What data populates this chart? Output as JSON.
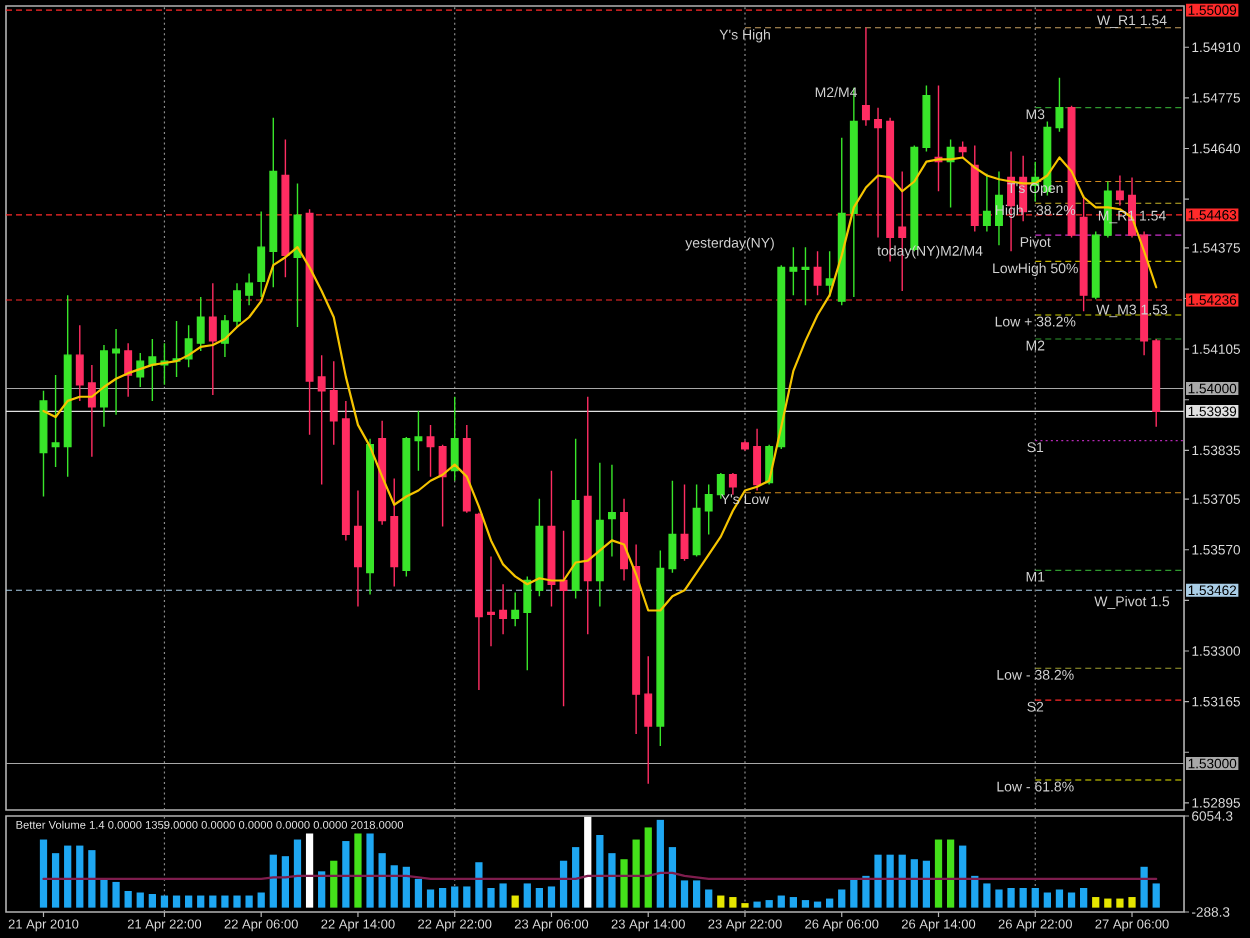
{
  "chart_data": [
    {
      "type": "candlestick",
      "categories": [
        "21 Apr 2010",
        null,
        null,
        null,
        null,
        null,
        null,
        null,
        null,
        null,
        "21 Apr 22:00",
        null,
        null,
        null,
        null,
        null,
        null,
        null,
        "22 Apr 06:00",
        null,
        null,
        null,
        null,
        null,
        null,
        null,
        "22 Apr 14:00",
        null,
        null,
        null,
        null,
        null,
        null,
        null,
        "22 Apr 22:00",
        null,
        null,
        null,
        null,
        null,
        null,
        null,
        "23 Apr 06:00",
        null,
        null,
        null,
        null,
        null,
        null,
        null,
        "23 Apr 14:00",
        null,
        null,
        null,
        null,
        null,
        null,
        null,
        "23 Apr 22:00",
        null,
        null,
        null,
        null,
        null,
        null,
        null,
        "26 Apr 06:00",
        null,
        null,
        null,
        null,
        null,
        null,
        null,
        "26 Apr 14:00",
        null,
        null,
        null,
        null,
        null,
        null,
        null,
        "26 Apr 22:00",
        null,
        null,
        null,
        null,
        null,
        null,
        null,
        "27 Apr 06:00",
        null,
        null
      ],
      "ohlc": [
        [
          1.53829,
          1.53994,
          1.53712,
          1.53967
        ],
        [
          1.53845,
          1.54036,
          1.53791,
          1.53855
        ],
        [
          1.53845,
          1.54249,
          1.53765,
          1.54089
        ],
        [
          1.54089,
          1.54169,
          1.53967,
          1.5401
        ],
        [
          1.54015,
          1.54063,
          1.53818,
          1.53951
        ],
        [
          1.53951,
          1.54116,
          1.53898,
          1.541
        ],
        [
          1.54095,
          1.54159,
          1.5393,
          1.54105
        ],
        [
          1.541,
          1.54121,
          1.53978,
          1.54036
        ],
        [
          1.54031,
          1.54095,
          1.54004,
          1.54073
        ],
        [
          1.54063,
          1.54132,
          1.53967,
          1.54084
        ],
        [
          1.54063,
          1.54121,
          1.5401,
          1.54073
        ],
        [
          1.54073,
          1.5418,
          1.54031,
          1.54079
        ],
        [
          1.54079,
          1.54169,
          1.54057,
          1.54132
        ],
        [
          1.54121,
          1.54244,
          1.541,
          1.5419
        ],
        [
          1.5419,
          1.54281,
          1.53983,
          1.54127
        ],
        [
          1.54121,
          1.54196,
          1.54084,
          1.5418
        ],
        [
          1.5418,
          1.54281,
          1.54164,
          1.5426
        ],
        [
          1.54249,
          1.54307,
          1.54222,
          1.54281
        ],
        [
          1.54286,
          1.54472,
          1.54244,
          1.54377
        ],
        [
          1.54366,
          1.54722,
          1.5427,
          1.54579
        ],
        [
          1.54568,
          1.54664,
          1.54297,
          1.54355
        ],
        [
          1.5435,
          1.54547,
          1.54164,
          1.54462
        ],
        [
          1.54467,
          1.54478,
          1.53877,
          1.5402
        ],
        [
          1.54031,
          1.54089,
          1.53744,
          1.53994
        ],
        [
          1.53994,
          1.54073,
          1.5385,
          1.53914
        ],
        [
          1.53919,
          1.53967,
          1.53595,
          1.53611
        ],
        [
          1.53632,
          1.53728,
          1.53419,
          1.53525
        ],
        [
          1.53509,
          1.53866,
          1.53451,
          1.5385
        ],
        [
          1.53866,
          1.53914,
          1.53637,
          1.53648
        ],
        [
          1.53658,
          1.5376,
          1.53472,
          1.53525
        ],
        [
          1.53515,
          1.53871,
          1.53499,
          1.53866
        ],
        [
          1.53861,
          1.5394,
          1.53781,
          1.53871
        ],
        [
          1.53871,
          1.53903,
          1.53765,
          1.53845
        ],
        [
          1.53845,
          1.5385,
          1.53632,
          1.53765
        ],
        [
          1.53781,
          1.53978,
          1.53754,
          1.53866
        ],
        [
          1.53866,
          1.53903,
          1.53669,
          1.53674
        ],
        [
          1.53664,
          1.53669,
          1.53196,
          1.53392
        ],
        [
          1.53403,
          1.53552,
          1.53313,
          1.53398
        ],
        [
          1.53408,
          1.53478,
          1.53345,
          1.53387
        ],
        [
          1.53387,
          1.53456,
          1.53366,
          1.53408
        ],
        [
          1.53403,
          1.53499,
          1.53249,
          1.53488
        ],
        [
          1.53462,
          1.53706,
          1.53446,
          1.53632
        ],
        [
          1.53632,
          1.53781,
          1.53419,
          1.53478
        ],
        [
          1.53488,
          1.53621,
          1.53153,
          1.53462
        ],
        [
          1.53462,
          1.53866,
          1.5344,
          1.53701
        ],
        [
          1.53712,
          1.53978,
          1.53345,
          1.53488
        ],
        [
          1.53488,
          1.53802,
          1.53419,
          1.53648
        ],
        [
          1.53653,
          1.53797,
          1.53552,
          1.53669
        ],
        [
          1.53669,
          1.53706,
          1.53488,
          1.5352
        ],
        [
          1.53525,
          1.53584,
          1.53079,
          1.53185
        ],
        [
          1.53185,
          1.53286,
          1.52946,
          1.531
        ],
        [
          1.531,
          1.53568,
          1.53047,
          1.5352
        ],
        [
          1.5352,
          1.53754,
          1.53509,
          1.53611
        ],
        [
          1.53611,
          1.53744,
          1.53541,
          1.53547
        ],
        [
          1.53557,
          1.53744,
          1.53552,
          1.5368
        ],
        [
          1.53674,
          1.53744,
          1.53611,
          1.53717
        ],
        [
          1.53717,
          1.53775,
          1.53706,
          1.5377
        ],
        [
          1.5377,
          1.53775,
          1.53717,
          1.53738
        ],
        [
          1.53855,
          1.53861,
          1.53834,
          1.53839
        ],
        [
          1.53845,
          1.53893,
          1.53728,
          1.53744
        ],
        [
          1.53749,
          1.5385,
          1.53744,
          1.53845
        ],
        [
          1.53845,
          1.54329,
          1.53839,
          1.54323
        ],
        [
          1.54313,
          1.54377,
          1.54249,
          1.54323
        ],
        [
          1.54318,
          1.54377,
          1.54222,
          1.54323
        ],
        [
          1.54323,
          1.54366,
          1.54249,
          1.54276
        ],
        [
          1.54276,
          1.54366,
          1.54244,
          1.54292
        ],
        [
          1.54233,
          1.54669,
          1.54222,
          1.54467
        ],
        [
          1.54467,
          1.54802,
          1.54244,
          1.54712
        ],
        [
          1.54754,
          1.54962,
          1.54701,
          1.54717
        ],
        [
          1.54717,
          1.54749,
          1.54403,
          1.54696
        ],
        [
          1.54712,
          1.54722,
          1.54339,
          1.54403
        ],
        [
          1.5443,
          1.54579,
          1.5426,
          1.54403
        ],
        [
          1.54371,
          1.54648,
          1.54366,
          1.54643
        ],
        [
          1.54643,
          1.54808,
          1.54632,
          1.54781
        ],
        [
          1.54616,
          1.54808,
          1.54526,
          1.54605
        ],
        [
          1.54605,
          1.54664,
          1.54483,
          1.54643
        ],
        [
          1.54643,
          1.54659,
          1.54616,
          1.54632
        ],
        [
          1.54595,
          1.54648,
          1.54419,
          1.54435
        ],
        [
          1.54435,
          1.54573,
          1.54419,
          1.54472
        ],
        [
          1.54435,
          1.54579,
          1.54382,
          1.54515
        ],
        [
          1.54563,
          1.54632,
          1.54366,
          1.54488
        ],
        [
          1.54563,
          1.54621,
          1.54446,
          1.54472
        ],
        [
          1.54542,
          1.54605,
          1.54499,
          1.54563
        ],
        [
          1.54526,
          1.54712,
          1.54515,
          1.54696
        ],
        [
          1.54696,
          1.54829,
          1.54685,
          1.54749
        ],
        [
          1.54749,
          1.54754,
          1.54403,
          1.54409
        ],
        [
          1.54456,
          1.54515,
          1.54206,
          1.54249
        ],
        [
          1.54244,
          1.54419,
          1.54238,
          1.54409
        ],
        [
          1.54409,
          1.54552,
          1.54403,
          1.54526
        ],
        [
          1.54526,
          1.54568,
          1.54488,
          1.54504
        ],
        [
          1.54515,
          1.54563,
          1.54403,
          1.54409
        ],
        [
          1.54409,
          1.54419,
          1.54089,
          1.54127
        ],
        [
          1.54127,
          1.54132,
          1.53898,
          1.53939
        ]
      ],
      "colors": [
        "#39e52a",
        "#39e52a",
        "#39e52a",
        "#ff2d62",
        "#ff2d62",
        "#39e52a",
        "#39e52a",
        "#ff2d62",
        "#39e52a",
        "#39e52a",
        "#39e52a",
        "#39e52a",
        "#39e52a",
        "#39e52a",
        "#ff2d62",
        "#39e52a",
        "#39e52a",
        "#39e52a",
        "#39e52a",
        "#39e52a",
        "#ff2d62",
        "#39e52a",
        "#ff2d62",
        "#ff2d62",
        "#ff2d62",
        "#ff2d62",
        "#ff2d62",
        "#39e52a",
        "#ff2d62",
        "#ff2d62",
        "#39e52a",
        "#39e52a",
        "#ff2d62",
        "#ff2d62",
        "#39e52a",
        "#ff2d62",
        "#ff2d62",
        "#ff2d62",
        "#ff2d62",
        "#39e52a",
        "#39e52a",
        "#39e52a",
        "#ff2d62",
        "#ff2d62",
        "#39e52a",
        "#ff2d62",
        "#39e52a",
        "#39e52a",
        "#ff2d62",
        "#ff2d62",
        "#ff2d62",
        "#39e52a",
        "#39e52a",
        "#ff2d62",
        "#39e52a",
        "#39e52a",
        "#39e52a",
        "#ff2d62",
        "#ff2d62",
        "#ff2d62",
        "#39e52a",
        "#39e52a",
        "#39e52a",
        "#39e52a",
        "#ff2d62",
        "#39e52a",
        "#39e52a",
        "#39e52a",
        "#ff2d62",
        "#ff2d62",
        "#ff2d62",
        "#ff2d62",
        "#39e52a",
        "#39e52a",
        "#ff2d62",
        "#39e52a",
        "#ff2d62",
        "#ff2d62",
        "#39e52a",
        "#39e52a",
        "#ff2d62",
        "#ff2d62",
        "#39e52a",
        "#39e52a",
        "#39e52a",
        "#ff2d62",
        "#ff2d62",
        "#39e52a",
        "#39e52a",
        "#ff2d62",
        "#ff2d62",
        "#ff2d62",
        "#ff2d62"
      ],
      "series": [
        {
          "type": "line",
          "color": "#f5c400",
          "values": [
            1.5394,
            1.53924,
            1.53967,
            1.53978,
            1.53978,
            1.54004,
            1.54026,
            1.54041,
            1.54052,
            1.54063,
            1.54068,
            1.54073,
            1.54089,
            1.54111,
            1.54116,
            1.54132,
            1.54164,
            1.5419,
            1.54233,
            1.54329,
            1.5435,
            1.54377,
            1.54323,
            1.5426,
            1.5419,
            1.54031,
            1.53903,
            1.53845,
            1.53765,
            1.5369,
            1.53712,
            1.53728,
            1.53754,
            1.5377,
            1.53797,
            1.53765,
            1.53685,
            1.53595,
            1.53531,
            1.53499,
            1.53478,
            1.53494,
            1.53488,
            1.53488,
            1.53536,
            1.53541,
            1.53568,
            1.53595,
            1.53584,
            1.53504,
            1.53408,
            1.53408,
            1.53446,
            1.53462,
            1.53509,
            1.53557,
            1.53605,
            1.53674,
            1.53728,
            1.53738,
            1.53754,
            1.53898,
            1.54047,
            1.54127,
            1.54196,
            1.54249,
            1.54355,
            1.54483,
            1.54536,
            1.54568,
            1.54563,
            1.54526,
            1.54552,
            1.54605,
            1.54611,
            1.54611,
            1.54616,
            1.54589,
            1.54568,
            1.54558,
            1.54552,
            1.54547,
            1.54547,
            1.54568,
            1.54616,
            1.54579,
            1.5451,
            1.54483,
            1.54483,
            1.54478,
            1.54456,
            1.54366,
            1.5427
          ]
        }
      ],
      "ylim": [
        1.52876,
        1.5502
      ],
      "yticks": [
        {
          "value": 1.5491,
          "label": "1.54910"
        },
        1.54775,
        {
          "value": 1.5464,
          "label": "1.54640"
        },
        {
          "value": 1.54505,
          "label": null
        },
        1.54375,
        {
          "value": 1.5424,
          "label": null
        },
        1.54105,
        {
          "value": 1.5397,
          "label": null
        },
        1.53835,
        1.53705,
        {
          "value": 1.5357,
          "label": "1.53570"
        },
        {
          "value": 1.53435,
          "label": null
        },
        {
          "value": 1.533,
          "label": "1.53300"
        },
        1.53165,
        {
          "value": 1.5303,
          "label": null
        },
        1.52895
      ],
      "tick_labels": "y",
      "ref_lines": [
        {
          "axis": "x",
          "value": "21 Apr 22:00",
          "color": "#8c8c8c",
          "line_style": "dotted"
        },
        {
          "axis": "x",
          "value": "22 Apr 22:00",
          "color": "#8c8c8c",
          "line_style": "dotted"
        },
        {
          "axis": "x",
          "value": "23 Apr 22:00",
          "color": "#8c8c8c",
          "line_style": "dotted"
        },
        {
          "axis": "x",
          "value": "26 Apr 22:00",
          "color": "#8c8c8c",
          "line_style": "dotted"
        },
        {
          "axis": "y",
          "value": 1.55009,
          "label": "1.55009",
          "color": "#ff2a2a",
          "line_style": "dashed"
        },
        {
          "axis": "y",
          "value": 1.54463,
          "label": "1.54463",
          "color": "#ff2a2a",
          "line_style": "dashed"
        },
        {
          "axis": "y",
          "value": 1.54236,
          "label": "1.54236",
          "color": "#ff2a2a",
          "line_style": "dashed"
        },
        {
          "axis": "y",
          "value": 1.54,
          "label": "1.54000",
          "color": "#a8a8a8",
          "line_style": "solid"
        },
        {
          "axis": "y",
          "value": 1.53939,
          "label": "1.53939",
          "color": "#e0e0e0",
          "line_style": "solid"
        },
        {
          "axis": "y",
          "value": 1.53462,
          "label": "1.53462",
          "color": "#a9cde6",
          "line_style": "dashed"
        },
        {
          "axis": "y",
          "value": 1.53,
          "label": "1.53000",
          "color": "#a8a8a8",
          "line_style": "solid"
        },
        {
          "axis": "y",
          "value": 1.54962,
          "color": "#c8a060",
          "line_style": "dashed"
        },
        {
          "axis": "y",
          "value": 1.54749,
          "color": "#2f9a2f",
          "line_style": "dashed"
        },
        {
          "axis": "y",
          "value": 1.54552,
          "color": "#d08a1e",
          "line_style": "dashed"
        },
        {
          "axis": "y",
          "value": 1.54494,
          "color": "#c8b428",
          "line_style": "dashed"
        },
        {
          "axis": "y",
          "value": 1.54409,
          "color": "#c832c8",
          "line_style": "dashed"
        },
        {
          "axis": "y",
          "value": 1.54339,
          "color": "#c8b400",
          "line_style": "dashed"
        },
        {
          "axis": "y",
          "value": 1.54196,
          "color": "#d2d200",
          "line_style": "dashed"
        },
        {
          "axis": "y",
          "value": 1.54132,
          "color": "#2f9a2f",
          "line_style": "dashed"
        },
        {
          "axis": "y",
          "value": 1.53861,
          "color": "#b428b4",
          "line_style": "dotted"
        },
        {
          "axis": "y",
          "value": 1.53722,
          "color": "#d08a1e",
          "line_style": "dashed"
        },
        {
          "axis": "y",
          "value": 1.53515,
          "color": "#2f9a2f",
          "line_style": "dashed"
        },
        {
          "axis": "y",
          "value": 1.53254,
          "color": "#a0a030",
          "line_style": "dashed"
        },
        {
          "axis": "y",
          "value": 1.53169,
          "color": "#ff2a2a",
          "line_style": "dashed"
        },
        {
          "axis": "y",
          "value": 1.52956,
          "color": "#e6e600",
          "line_style": "dashed"
        }
      ],
      "annotations": [
        {
          "text": "Y's High",
          "x": "23 Apr 22:00",
          "y": 1.54962
        },
        "M2/M4",
        "yesterday(NY)",
        {
          "text": "M3",
          "x": "26 Apr 22:00",
          "y": 1.54749
        },
        {
          "text": "T's Open",
          "x": "26 Apr 22:00",
          "y": 1.54552
        },
        {
          "text": "High - 38.2%",
          "x": "26 Apr 22:00",
          "y": 1.54494
        },
        {
          "text": "Pivot",
          "x": "26 Apr 22:00",
          "y": 1.54409
        },
        "today(NY)M2/M4",
        {
          "text": "LowHigh 50%",
          "x": "26 Apr 22:00",
          "y": 1.54339
        },
        {
          "text": "Low + 38.2%",
          "x": "26 Apr 22:00",
          "y": 1.54196
        },
        {
          "text": "M2",
          "x": "26 Apr 22:00",
          "y": 1.54132
        },
        {
          "text": "S1",
          "x": "26 Apr 22:00",
          "y": 1.53861
        },
        {
          "text": "Y's Low",
          "x": "23 Apr 22:00",
          "y": 1.53722
        },
        {
          "text": "M1",
          "x": "26 Apr 22:00",
          "y": 1.53515
        },
        {
          "text": "Low - 38.2%",
          "x": "26 Apr 22:00",
          "y": 1.53254
        },
        {
          "text": "S2",
          "x": "26 Apr 22:00",
          "y": 1.53169
        },
        {
          "text": "Low - 61.8%",
          "x": "26 Apr 22:00",
          "y": 1.52956
        },
        {
          "text": "W_R1 1.54",
          "x": "27 Apr 06:00",
          "y": 1.54999
        },
        {
          "text": "M_R1 1.54",
          "x": "27 Apr 06:00",
          "y": 1.54478
        },
        {
          "text": "W_M3 1.53",
          "x": "27 Apr 06:00",
          "y": 1.54228
        },
        {
          "text": "W_Pivot 1.5",
          "x": "27 Apr 06:00",
          "y": 1.53451
        }
      ]
    },
    {
      "type": "bar",
      "title": "Better Volume 1.4 0.0000 1359.0000 0.0000 0.0000 0.0000 0.0000 2018.0000",
      "categories": [
        "21 Apr 2010",
        null,
        null,
        null,
        null,
        null,
        null,
        null,
        null,
        null,
        "21 Apr 22:00",
        null,
        null,
        null,
        null,
        null,
        null,
        null,
        "22 Apr 06:00",
        null,
        null,
        null,
        null,
        null,
        null,
        null,
        "22 Apr 14:00",
        null,
        null,
        null,
        null,
        null,
        null,
        null,
        "22 Apr 22:00",
        null,
        null,
        null,
        null,
        null,
        null,
        null,
        "23 Apr 06:00",
        null,
        null,
        null,
        null,
        null,
        null,
        null,
        "23 Apr 14:00",
        null,
        null,
        null,
        null,
        null,
        null,
        null,
        "23 Apr 22:00",
        null,
        null,
        null,
        null,
        null,
        null,
        null,
        "26 Apr 06:00",
        null,
        null,
        null,
        null,
        null,
        null,
        null,
        "26 Apr 14:00",
        null,
        null,
        null,
        null,
        null,
        null,
        null,
        "26 Apr 22:00",
        null,
        null,
        null,
        null,
        null,
        null,
        null,
        "27 Apr 06:00",
        null,
        null
      ],
      "series": [
        {
          "values": [
            4500,
            3600,
            4100,
            4100,
            3800,
            1900,
            1700,
            1100,
            1000,
            900,
            800,
            800,
            800,
            800,
            800,
            800,
            800,
            800,
            1000,
            3500,
            3400,
            4500,
            4900,
            2400,
            3100,
            4400,
            4900,
            4900,
            3600,
            2800,
            2700,
            1900,
            1200,
            1300,
            1400,
            1400,
            3000,
            1300,
            1600,
            800,
            1600,
            1300,
            1400,
            3100,
            4000,
            6000,
            4800,
            3600,
            3200,
            4500,
            5300,
            5800,
            4000,
            1800,
            1800,
            1200,
            800,
            700,
            300,
            400,
            500,
            800,
            700,
            500,
            400,
            600,
            1200,
            1900,
            2100,
            3500,
            3500,
            3500,
            3200,
            3100,
            4500,
            4500,
            4100,
            2100,
            1600,
            1200,
            1300,
            1300,
            1300,
            1000,
            1200,
            1000,
            1300,
            700,
            600,
            600,
            700,
            2700,
            1600
          ],
          "colors": [
            "#1ea7f2",
            "#1ea7f2",
            "#1ea7f2",
            "#1ea7f2",
            "#1ea7f2",
            "#1ea7f2",
            "#1ea7f2",
            "#1ea7f2",
            "#1ea7f2",
            "#1ea7f2",
            "#1ea7f2",
            "#1ea7f2",
            "#1ea7f2",
            "#1ea7f2",
            "#1ea7f2",
            "#1ea7f2",
            "#1ea7f2",
            "#1ea7f2",
            "#1ea7f2",
            "#1ea7f2",
            "#1ea7f2",
            "#1ea7f2",
            "#ffffff",
            "#1ea7f2",
            "#44e01a",
            "#1ea7f2",
            "#44e01a",
            "#1ea7f2",
            "#1ea7f2",
            "#1ea7f2",
            "#1ea7f2",
            "#1ea7f2",
            "#1ea7f2",
            "#1ea7f2",
            "#1ea7f2",
            "#1ea7f2",
            "#1ea7f2",
            "#1ea7f2",
            "#1ea7f2",
            "#e6e600",
            "#1ea7f2",
            "#1ea7f2",
            "#1ea7f2",
            "#1ea7f2",
            "#1ea7f2",
            "#ffffff",
            "#1ea7f2",
            "#1ea7f2",
            "#44e01a",
            "#44e01a",
            "#44e01a",
            "#1ea7f2",
            "#1ea7f2",
            "#1ea7f2",
            "#1ea7f2",
            "#1ea7f2",
            "#e6e600",
            "#e6e600",
            "#e6e600",
            "#1ea7f2",
            "#1ea7f2",
            "#1ea7f2",
            "#1ea7f2",
            "#1ea7f2",
            "#1ea7f2",
            "#1ea7f2",
            "#1ea7f2",
            "#1ea7f2",
            "#1ea7f2",
            "#1ea7f2",
            "#1ea7f2",
            "#1ea7f2",
            "#1ea7f2",
            "#1ea7f2",
            "#44e01a",
            "#44e01a",
            "#1ea7f2",
            "#1ea7f2",
            "#1ea7f2",
            "#1ea7f2",
            "#1ea7f2",
            "#1ea7f2",
            "#1ea7f2",
            "#1ea7f2",
            "#1ea7f2",
            "#1ea7f2",
            "#1ea7f2",
            "#e6e600",
            "#e6e600",
            "#e6e600",
            "#e6e600",
            "#1ea7f2",
            "#1ea7f2"
          ]
        },
        {
          "type": "line",
          "color": "#7f1d4e",
          "values": [
            1900,
            1900,
            1900,
            1900,
            1900,
            1900,
            1900,
            1900,
            1900,
            1900,
            1900,
            1900,
            1900,
            1900,
            1900,
            1900,
            1900,
            1900,
            1900,
            2000,
            2000,
            2100,
            2100,
            2100,
            2100,
            2100,
            2100,
            2100,
            2100,
            2100,
            2100,
            2000,
            1900,
            1900,
            1900,
            1900,
            1900,
            1900,
            1900,
            1900,
            1900,
            1900,
            1900,
            1900,
            1900,
            2100,
            2100,
            2100,
            2100,
            2100,
            2100,
            2300,
            2300,
            2100,
            2000,
            1900,
            1900,
            1900,
            1900,
            1900,
            1900,
            1900,
            1900,
            1900,
            1900,
            1900,
            1900,
            1900,
            1900,
            1900,
            1900,
            1900,
            1900,
            1900,
            1900,
            1900,
            1900,
            1900,
            1900,
            1900,
            1900,
            1900,
            1900,
            1900,
            1900,
            1900,
            1900,
            1900,
            1900,
            1900,
            1900,
            1900,
            1900
          ]
        }
      ],
      "ylim": [
        -288.3,
        6054.3
      ],
      "yticks": [
        -288.3,
        6054.3
      ],
      "ref_lines": [
        {
          "axis": "x",
          "value": "21 Apr 22:00",
          "color": "#8c8c8c",
          "line_style": "dotted"
        },
        {
          "axis": "x",
          "value": "22 Apr 22:00",
          "color": "#8c8c8c",
          "line_style": "dotted"
        },
        {
          "axis": "x",
          "value": "23 Apr 22:00",
          "color": "#8c8c8c",
          "line_style": "dotted"
        },
        {
          "axis": "x",
          "value": "26 Apr 22:00",
          "color": "#8c8c8c",
          "line_style": "dotted"
        }
      ]
    }
  ]
}
